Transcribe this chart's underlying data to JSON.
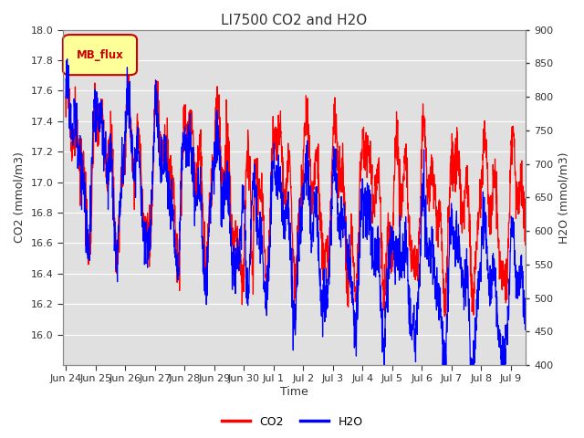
{
  "title": "LI7500 CO2 and H2O",
  "xlabel": "Time",
  "ylabel_left": "CO2 (mmol/m3)",
  "ylabel_right": "H2O (mmol/m3)",
  "co2_ylim": [
    15.8,
    18.0
  ],
  "h2o_ylim": [
    400,
    900
  ],
  "co2_yticks": [
    16.0,
    16.2,
    16.4,
    16.6,
    16.8,
    17.0,
    17.2,
    17.4,
    17.6,
    17.8,
    18.0
  ],
  "h2o_yticks": [
    400,
    450,
    500,
    550,
    600,
    650,
    700,
    750,
    800,
    850,
    900
  ],
  "xtick_labels": [
    "Jun 24",
    "Jun 25",
    "Jun 26",
    "Jun 27",
    "Jun 28",
    "Jun 29",
    "Jun 30",
    "Jul 1",
    "Jul 2",
    "Jul 3",
    "Jul 4",
    "Jul 5",
    "Jul 6",
    "Jul 7",
    "Jul 8",
    "Jul 9"
  ],
  "co2_color": "#FF0000",
  "h2o_color": "#0000FF",
  "background_color": "#ffffff",
  "plot_bg_color": "#e0e0e0",
  "legend_label": "MB_flux",
  "legend_box_facecolor": "#FFFF99",
  "legend_box_edgecolor": "#CC0000",
  "legend_text_color": "#CC0000",
  "grid_color": "#ffffff",
  "title_fontsize": 11,
  "axis_label_fontsize": 9,
  "tick_fontsize": 8,
  "legend_fontsize": 9
}
